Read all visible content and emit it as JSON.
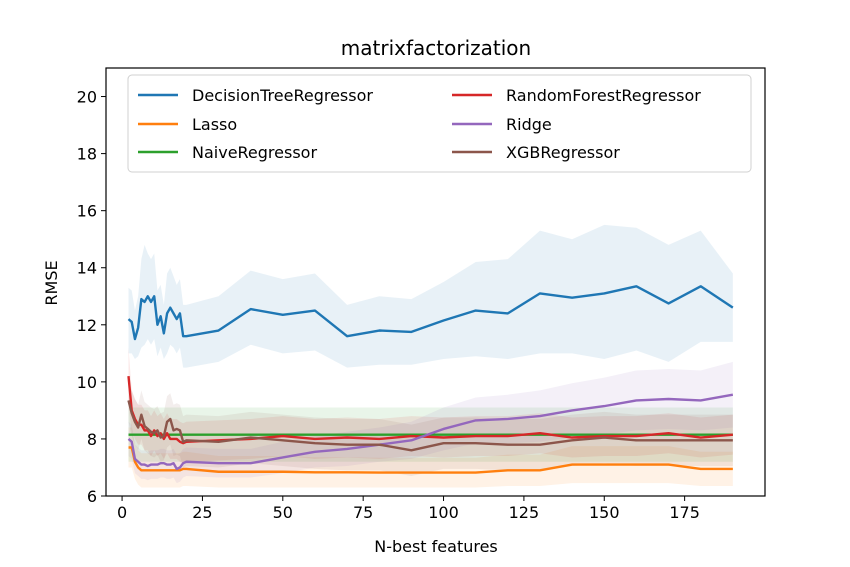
{
  "chart_data": {
    "type": "line",
    "title": "matrixfactorization",
    "xlabel": "N-best features",
    "ylabel": "RMSE",
    "xlim": [
      -5,
      200
    ],
    "ylim": [
      6,
      21
    ],
    "xticks": [
      0,
      25,
      50,
      75,
      100,
      125,
      150,
      175
    ],
    "yticks": [
      6,
      8,
      10,
      12,
      14,
      16,
      18,
      20
    ],
    "legend_location": "upper",
    "series": [
      {
        "name": "DecisionTreeRegressor",
        "color": "#1f77b4",
        "x": [
          2,
          3,
          4,
          5,
          6,
          7,
          8,
          9,
          10,
          11,
          12,
          13,
          14,
          15,
          16,
          17,
          18,
          19,
          20,
          30,
          40,
          50,
          60,
          70,
          80,
          90,
          100,
          110,
          120,
          130,
          140,
          150,
          160,
          170,
          180,
          190
        ],
        "y": [
          12.2,
          12.1,
          11.5,
          11.9,
          12.9,
          12.8,
          13.0,
          12.8,
          13.0,
          12.0,
          12.3,
          11.7,
          12.4,
          12.6,
          12.4,
          12.2,
          12.4,
          11.6,
          11.6,
          11.8,
          12.55,
          12.35,
          12.5,
          11.6,
          11.8,
          11.75,
          12.15,
          12.5,
          12.4,
          13.1,
          12.95,
          13.1,
          13.35,
          12.75,
          13.35,
          12.6
        ],
        "lower": [
          11.0,
          11.0,
          10.8,
          10.9,
          11.2,
          11.3,
          11.5,
          11.3,
          11.5,
          10.9,
          11.2,
          10.8,
          11.0,
          11.3,
          11.2,
          11.0,
          11.2,
          10.5,
          10.5,
          10.7,
          11.3,
          11.0,
          11.1,
          10.5,
          10.6,
          10.6,
          10.8,
          10.9,
          10.8,
          11.0,
          11.0,
          10.8,
          11.1,
          10.7,
          11.4,
          11.4
        ],
        "upper": [
          13.3,
          13.2,
          12.5,
          13.0,
          14.3,
          14.8,
          14.5,
          14.3,
          14.5,
          13.2,
          13.4,
          12.7,
          13.8,
          14.0,
          13.7,
          13.4,
          13.6,
          12.7,
          12.7,
          13.0,
          13.9,
          13.6,
          13.8,
          12.7,
          13.0,
          12.9,
          13.5,
          14.2,
          14.3,
          15.3,
          15.0,
          15.5,
          15.4,
          14.8,
          15.3,
          13.8
        ]
      },
      {
        "name": "Lasso",
        "color": "#ff7f0e",
        "x": [
          2,
          3,
          4,
          5,
          6,
          7,
          8,
          9,
          10,
          11,
          12,
          13,
          14,
          15,
          16,
          17,
          18,
          19,
          20,
          30,
          40,
          50,
          60,
          70,
          80,
          90,
          100,
          110,
          120,
          130,
          140,
          150,
          160,
          170,
          180,
          190
        ],
        "y": [
          7.7,
          7.7,
          7.2,
          7.0,
          6.9,
          6.9,
          6.9,
          6.9,
          6.9,
          6.9,
          6.9,
          6.9,
          6.9,
          6.9,
          6.9,
          6.9,
          6.9,
          6.95,
          6.95,
          6.85,
          6.85,
          6.85,
          6.83,
          6.83,
          6.82,
          6.82,
          6.82,
          6.82,
          6.9,
          6.9,
          7.1,
          7.1,
          7.1,
          7.1,
          6.95,
          6.95
        ],
        "lower": [
          7.0,
          7.0,
          6.6,
          6.4,
          6.3,
          6.3,
          6.3,
          6.3,
          6.3,
          6.3,
          6.3,
          6.3,
          6.3,
          6.3,
          6.3,
          6.3,
          6.3,
          6.35,
          6.35,
          6.3,
          6.3,
          6.3,
          6.3,
          6.3,
          6.3,
          6.3,
          6.3,
          6.3,
          6.35,
          6.35,
          6.45,
          6.45,
          6.45,
          6.45,
          6.35,
          6.35
        ],
        "upper": [
          8.4,
          8.4,
          7.8,
          7.6,
          7.5,
          7.5,
          7.5,
          7.5,
          7.5,
          7.5,
          7.5,
          7.5,
          7.5,
          7.5,
          7.5,
          7.5,
          7.5,
          7.55,
          7.55,
          7.4,
          7.4,
          7.4,
          7.36,
          7.36,
          7.34,
          7.34,
          7.34,
          7.34,
          7.45,
          7.45,
          7.75,
          7.75,
          7.75,
          7.75,
          7.55,
          7.55
        ]
      },
      {
        "name": "NaiveRegressor",
        "color": "#2ca02c",
        "x": [
          2,
          190
        ],
        "y": [
          8.15,
          8.15
        ],
        "lower": [
          7.2,
          7.2
        ],
        "upper": [
          9.1,
          9.1
        ]
      },
      {
        "name": "RandomForestRegressor",
        "color": "#d62728",
        "x": [
          2,
          3,
          4,
          5,
          6,
          7,
          8,
          9,
          10,
          11,
          12,
          13,
          14,
          15,
          16,
          17,
          18,
          19,
          20,
          30,
          40,
          50,
          60,
          70,
          80,
          90,
          100,
          110,
          120,
          130,
          140,
          150,
          160,
          170,
          180,
          190
        ],
        "y": [
          10.2,
          9.0,
          8.7,
          8.5,
          8.5,
          8.3,
          8.3,
          8.1,
          8.3,
          8.1,
          8.2,
          8.0,
          8.2,
          8.0,
          8.0,
          8.0,
          7.9,
          7.85,
          7.9,
          7.95,
          8.0,
          8.1,
          8.0,
          8.05,
          8.0,
          8.1,
          8.05,
          8.1,
          8.1,
          8.2,
          8.05,
          8.1,
          8.1,
          8.2,
          8.05,
          8.15
        ],
        "lower": [
          9.2,
          8.3,
          8.0,
          7.8,
          7.8,
          7.6,
          7.6,
          7.4,
          7.6,
          7.4,
          7.5,
          7.3,
          7.5,
          7.3,
          7.3,
          7.3,
          7.2,
          7.15,
          7.2,
          7.25,
          7.3,
          7.4,
          7.3,
          7.35,
          7.3,
          7.4,
          7.35,
          7.4,
          7.4,
          7.5,
          7.35,
          7.4,
          7.4,
          7.5,
          7.35,
          7.45
        ],
        "upper": [
          11.2,
          9.7,
          9.4,
          9.2,
          9.2,
          9.0,
          9.0,
          8.8,
          9.0,
          8.8,
          8.9,
          8.7,
          8.9,
          8.7,
          8.7,
          8.7,
          8.6,
          8.55,
          8.6,
          8.65,
          8.7,
          8.8,
          8.7,
          8.75,
          8.7,
          8.8,
          8.75,
          8.8,
          8.8,
          8.9,
          8.75,
          8.8,
          8.8,
          8.9,
          8.75,
          8.85
        ]
      },
      {
        "name": "Ridge",
        "color": "#9467bd",
        "x": [
          2,
          3,
          4,
          5,
          6,
          7,
          8,
          9,
          10,
          11,
          12,
          13,
          14,
          15,
          16,
          17,
          18,
          19,
          20,
          30,
          40,
          50,
          60,
          70,
          80,
          90,
          100,
          110,
          120,
          130,
          140,
          150,
          160,
          170,
          180,
          190
        ],
        "y": [
          8.0,
          7.9,
          7.3,
          7.2,
          7.1,
          7.1,
          7.05,
          7.1,
          7.1,
          7.1,
          7.15,
          7.15,
          7.1,
          7.1,
          7.15,
          6.95,
          7.0,
          7.15,
          7.2,
          7.15,
          7.15,
          7.35,
          7.55,
          7.65,
          7.8,
          7.95,
          8.35,
          8.65,
          8.7,
          8.8,
          9.0,
          9.15,
          9.35,
          9.4,
          9.35,
          9.55
        ],
        "lower": [
          7.4,
          7.3,
          6.8,
          6.7,
          6.6,
          6.6,
          6.55,
          6.6,
          6.6,
          6.6,
          6.65,
          6.65,
          6.6,
          6.6,
          6.65,
          6.45,
          6.5,
          6.65,
          6.7,
          6.65,
          6.65,
          6.8,
          7.0,
          7.05,
          7.2,
          7.3,
          7.6,
          7.85,
          7.85,
          7.9,
          8.05,
          8.15,
          8.3,
          8.35,
          8.3,
          8.4
        ],
        "upper": [
          8.6,
          8.5,
          7.8,
          7.7,
          7.6,
          7.6,
          7.55,
          7.6,
          7.6,
          7.6,
          7.65,
          7.65,
          7.6,
          7.6,
          7.65,
          7.45,
          7.5,
          7.65,
          7.7,
          7.65,
          7.65,
          7.9,
          8.1,
          8.25,
          8.4,
          8.6,
          9.1,
          9.45,
          9.55,
          9.7,
          9.95,
          10.15,
          10.4,
          10.45,
          10.4,
          10.7
        ]
      },
      {
        "name": "XGBRegressor",
        "color": "#8c564b",
        "x": [
          2,
          3,
          4,
          5,
          6,
          7,
          8,
          9,
          10,
          11,
          12,
          13,
          14,
          15,
          16,
          17,
          18,
          19,
          20,
          30,
          40,
          50,
          60,
          70,
          80,
          90,
          100,
          110,
          120,
          130,
          140,
          150,
          160,
          170,
          180,
          190
        ],
        "y": [
          9.35,
          8.9,
          8.6,
          8.4,
          8.85,
          8.45,
          8.35,
          8.25,
          8.2,
          8.3,
          8.05,
          8.1,
          8.6,
          8.7,
          8.3,
          8.35,
          8.3,
          7.9,
          7.95,
          7.9,
          8.05,
          7.95,
          7.85,
          7.8,
          7.8,
          7.6,
          7.85,
          7.85,
          7.8,
          7.8,
          7.95,
          8.05,
          7.95,
          7.95,
          7.95,
          7.95
        ],
        "lower": [
          8.6,
          8.1,
          7.8,
          7.6,
          8.0,
          7.6,
          7.5,
          7.4,
          7.35,
          7.45,
          7.2,
          7.25,
          7.7,
          7.8,
          7.4,
          7.45,
          7.4,
          7.0,
          7.05,
          7.0,
          7.15,
          7.05,
          6.95,
          6.9,
          6.9,
          6.7,
          6.95,
          6.95,
          6.9,
          6.9,
          7.05,
          7.15,
          7.05,
          7.05,
          7.05,
          7.05
        ],
        "upper": [
          10.1,
          9.7,
          9.4,
          9.2,
          9.7,
          9.3,
          9.2,
          9.1,
          9.05,
          9.15,
          8.9,
          8.95,
          9.5,
          9.6,
          9.2,
          9.25,
          9.2,
          8.8,
          8.85,
          8.8,
          8.95,
          8.85,
          8.75,
          8.7,
          8.7,
          8.5,
          8.75,
          8.75,
          8.7,
          8.7,
          8.85,
          8.95,
          8.85,
          8.85,
          8.85,
          8.85
        ]
      }
    ]
  }
}
